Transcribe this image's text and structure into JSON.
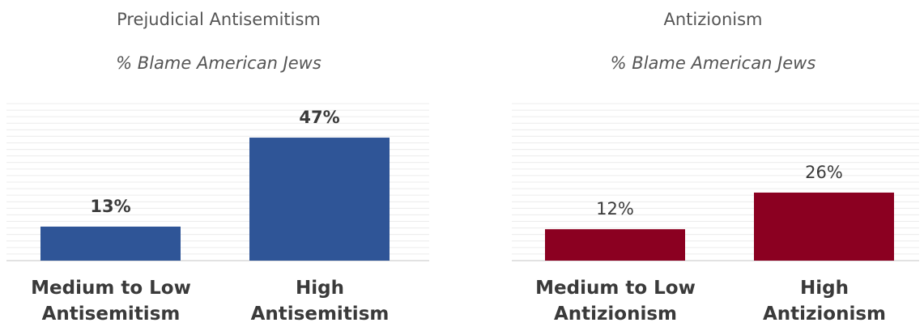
{
  "chart_data": [
    {
      "type": "bar",
      "title": "Prejudicial Antisemitism",
      "subtitle": "% Blame American Jews",
      "categories": [
        "Medium to Low Antisemitism",
        "High Antisemitism"
      ],
      "category_lines": [
        [
          "Medium to Low",
          "Antisemitism"
        ],
        [
          "High",
          "Antisemitism"
        ]
      ],
      "values": [
        13,
        47
      ],
      "value_labels": [
        "13%",
        "47%"
      ],
      "ylim": [
        0,
        60
      ],
      "grid": true,
      "bar_color": "#2F5597",
      "label_weight": "bold"
    },
    {
      "type": "bar",
      "title": "Antizionism",
      "subtitle": "% Blame American Jews",
      "categories": [
        "Medium to Low Antizionism",
        "High Antizionism"
      ],
      "category_lines": [
        [
          "Medium to Low",
          "Antizionism"
        ],
        [
          "High",
          "Antizionism"
        ]
      ],
      "values": [
        12,
        26
      ],
      "value_labels": [
        "12%",
        "26%"
      ],
      "ylim": [
        0,
        60
      ],
      "grid": true,
      "bar_color": "#8B0021",
      "label_weight": "normal"
    }
  ]
}
